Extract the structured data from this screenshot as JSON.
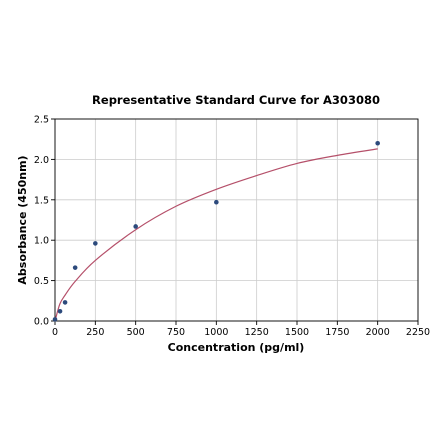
{
  "chart_data": {
    "type": "scatter",
    "title": "Representative Standard Curve for A303080",
    "xlabel": "Concentration (pg/ml)",
    "ylabel": "Absorbance (450nm)",
    "xlim": [
      0,
      2250
    ],
    "ylim": [
      0,
      2.5
    ],
    "xticks": [
      0,
      250,
      500,
      750,
      1000,
      1250,
      1500,
      1750,
      2000,
      2250
    ],
    "yticks": [
      0.0,
      0.5,
      1.0,
      1.5,
      2.0,
      2.5
    ],
    "xtick_labels": [
      "0",
      "250",
      "500",
      "750",
      "1000",
      "1250",
      "1500",
      "1750",
      "2000",
      "2250"
    ],
    "ytick_labels": [
      "0.0",
      "0.5",
      "1.0",
      "1.5",
      "2.0",
      "2.5"
    ],
    "grid": true,
    "series": [
      {
        "type": "scatter",
        "x": [
          0,
          31.25,
          62.5,
          125,
          250,
          500,
          1000,
          2000
        ],
        "y": [
          0.02,
          0.12,
          0.23,
          0.66,
          0.96,
          1.17,
          1.47,
          2.2
        ]
      },
      {
        "type": "line",
        "x": [
          0,
          30,
          62.5,
          125,
          250,
          500,
          750,
          1000,
          1250,
          1500,
          1750,
          2000
        ],
        "y": [
          0.0,
          0.21,
          0.32,
          0.49,
          0.75,
          1.13,
          1.42,
          1.63,
          1.8,
          1.95,
          2.05,
          2.13
        ]
      }
    ],
    "colors": {
      "points": "#2c4a7c",
      "curve": "#b5506a",
      "grid": "#cccccc",
      "axes": "#000000"
    }
  }
}
